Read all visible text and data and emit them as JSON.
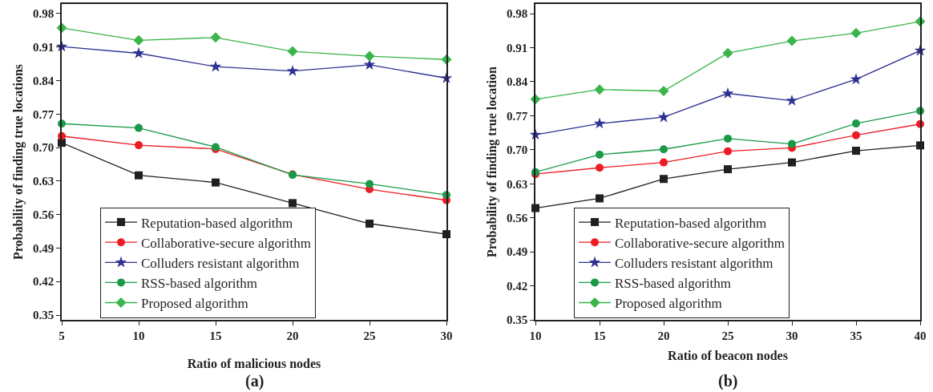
{
  "chart_data": [
    {
      "type": "line",
      "xlabel": "Ratio of malicious nodes",
      "ylabel": "Probability of finding true locations",
      "annotations": [
        "(a)"
      ],
      "x": [
        5,
        10,
        15,
        20,
        25,
        30
      ],
      "xlim": [
        5,
        30
      ],
      "xticks": [
        5,
        10,
        15,
        20,
        25,
        30
      ],
      "ylim": [
        0.34,
        1.0
      ],
      "yticks": [
        0.35,
        0.42,
        0.49,
        0.56,
        0.63,
        {
          "value": 0.7,
          "label": "0.70"
        },
        0.77,
        0.84,
        0.91,
        0.98
      ],
      "legend": "bottom left",
      "series": [
        {
          "name": "Reputation-based algorithm",
          "color": "#231f20",
          "marker": "square",
          "values": [
            0.71,
            0.642,
            0.627,
            0.584,
            0.541,
            0.519
          ]
        },
        {
          "name": "Collaborative-secure algorithm",
          "color": "#ed1c24",
          "marker": "circle",
          "values": [
            0.724,
            0.705,
            0.697,
            0.644,
            0.613,
            0.59
          ]
        },
        {
          "name": "Colluders resistant algorithm",
          "color": "#2e3192",
          "marker": "star",
          "values": [
            0.911,
            0.897,
            0.869,
            0.86,
            0.873,
            0.845
          ]
        },
        {
          "name": "RSS-based algorithm",
          "color": "#1a9a48",
          "marker": "circle",
          "values": [
            0.75,
            0.741,
            0.701,
            0.643,
            0.624,
            0.601
          ]
        },
        {
          "name": "Proposed algorithm",
          "color": "#39b54a",
          "marker": "diamond",
          "values": [
            0.95,
            0.924,
            0.93,
            0.901,
            0.891,
            0.884
          ]
        }
      ]
    },
    {
      "type": "line",
      "xlabel": "Ratio of beacon nodes",
      "ylabel": "Probability of finding true location",
      "annotations": [
        "(b)"
      ],
      "x": [
        10,
        15,
        20,
        25,
        30,
        35,
        40
      ],
      "xlim": [
        10,
        40
      ],
      "xticks": [
        10,
        15,
        20,
        25,
        30,
        35,
        40
      ],
      "ylim": [
        0.35,
        1.0
      ],
      "yticks": [
        0.35,
        0.42,
        0.49,
        0.56,
        0.63,
        {
          "value": 0.7,
          "label": "0.70"
        },
        0.77,
        0.84,
        0.91,
        0.98
      ],
      "legend": "bottom left",
      "series": [
        {
          "name": "Reputation-based algorithm",
          "color": "#231f20",
          "marker": "square",
          "values": [
            0.58,
            0.6,
            0.64,
            0.66,
            0.674,
            0.698,
            0.709
          ]
        },
        {
          "name": "Collaborative-secure algorithm",
          "color": "#ed1c24",
          "marker": "circle",
          "values": [
            0.65,
            0.663,
            0.674,
            0.697,
            0.704,
            0.73,
            0.753
          ]
        },
        {
          "name": "Colluders resistant algorithm",
          "color": "#2e3192",
          "marker": "star",
          "values": [
            0.731,
            0.754,
            0.767,
            0.816,
            0.801,
            0.845,
            0.904
          ]
        },
        {
          "name": "RSS-based algorithm",
          "color": "#1a9a48",
          "marker": "circle",
          "values": [
            0.654,
            0.69,
            0.701,
            0.723,
            0.712,
            0.754,
            0.78
          ]
        },
        {
          "name": "Proposed algorithm",
          "color": "#39b54a",
          "marker": "diamond",
          "values": [
            0.804,
            0.824,
            0.821,
            0.899,
            0.924,
            0.94,
            0.964
          ]
        }
      ]
    }
  ]
}
